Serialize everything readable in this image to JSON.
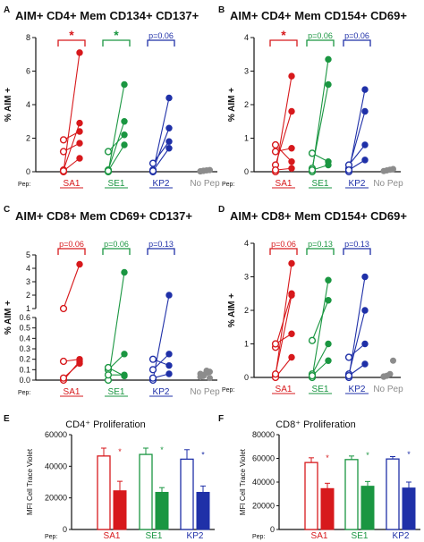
{
  "colors": {
    "SA1": "#d7191c",
    "SE1": "#1a9641",
    "KP2": "#1f30a8",
    "NoPep": "#8c8c8c"
  },
  "chart_data": [
    {
      "type": "scatter",
      "panel": "A",
      "title": "AIM+ CD4+ Mem CD134+ CD137+",
      "ylabel": "% AIM +",
      "ylim": [
        0,
        8
      ],
      "yticks": [
        "0",
        "2",
        "4",
        "6",
        "8"
      ],
      "pep_label": "Pep:",
      "categories": [
        "SA1",
        "SE1",
        "KP2",
        "No Pep"
      ],
      "significance": [
        "*",
        "*",
        "p=0.06",
        ""
      ],
      "pairs": [
        {
          "group": "SA1",
          "before": [
            0.0,
            0.1,
            1.2,
            1.9,
            0.05
          ],
          "after": [
            7.1,
            2.9,
            1.7,
            2.4,
            0.8
          ]
        },
        {
          "group": "SE1",
          "before": [
            0.0,
            0.1,
            1.2,
            0.05
          ],
          "after": [
            5.2,
            3.0,
            2.2,
            1.6
          ]
        },
        {
          "group": "KP2",
          "before": [
            0.0,
            0.1,
            0.5,
            0.05
          ],
          "after": [
            4.4,
            2.6,
            1.8,
            1.4
          ]
        }
      ],
      "nopep": [
        0.02,
        0.05,
        0.08,
        0.1,
        0.03,
        0.06
      ]
    },
    {
      "type": "scatter",
      "panel": "B",
      "title": "AIM+ CD4+ Mem CD154+ CD69+",
      "ylabel": "% AIM +",
      "ylim": [
        0,
        4
      ],
      "yticks": [
        "0",
        "1",
        "2",
        "3",
        "4"
      ],
      "pep_label": "Pep:",
      "categories": [
        "SA1",
        "SE1",
        "KP2",
        "No Pep"
      ],
      "significance": [
        "*",
        "p=0.06",
        "p=0.06",
        ""
      ],
      "pairs": [
        {
          "group": "SA1",
          "before": [
            0.0,
            0.2,
            0.6,
            0.8,
            0.05
          ],
          "after": [
            2.85,
            1.8,
            0.7,
            0.3,
            0.1
          ]
        },
        {
          "group": "SE1",
          "before": [
            0.0,
            0.1,
            0.55,
            0.05
          ],
          "after": [
            3.35,
            2.6,
            0.3,
            0.2
          ]
        },
        {
          "group": "KP2",
          "before": [
            0.0,
            0.1,
            0.2,
            0.05
          ],
          "after": [
            2.45,
            1.8,
            0.8,
            0.35
          ]
        }
      ],
      "nopep": [
        0.02,
        0.04,
        0.06,
        0.08
      ]
    },
    {
      "type": "scatter",
      "panel": "C",
      "title": "AIM+ CD8+ Mem CD69+ CD137+",
      "ylabel": "% AIM +",
      "ylim": [
        0,
        5
      ],
      "yticks": [
        "0.0",
        "0.1",
        "0.2",
        "0.3",
        "0.4",
        "0.5",
        "0.6",
        "1",
        "2",
        "3",
        "4",
        "5"
      ],
      "pep_label": "Pep:",
      "categories": [
        "SA1",
        "SE1",
        "KP2",
        "No Pep"
      ],
      "significance": [
        "p=0.06",
        "p=0.06",
        "p=0.13",
        ""
      ],
      "pairs": [
        {
          "group": "SA1",
          "before": [
            1.0,
            0.18,
            0.0,
            0.02
          ],
          "after": [
            4.3,
            0.2,
            0.18,
            0.16
          ]
        },
        {
          "group": "SE1",
          "before": [
            0.0,
            0.1,
            0.05,
            0.12
          ],
          "after": [
            3.7,
            0.25,
            0.05,
            0.04
          ]
        },
        {
          "group": "KP2",
          "before": [
            0.0,
            0.1,
            0.2,
            0.02
          ],
          "after": [
            2.0,
            0.25,
            0.14,
            0.06
          ]
        }
      ],
      "nopep": [
        0.03,
        0.05,
        0.07,
        0.08,
        0.06,
        0.04,
        0.09,
        0.02
      ]
    },
    {
      "type": "scatter",
      "panel": "D",
      "title": "AIM+ CD8+ Mem CD154+ CD69+",
      "ylabel": "% AIM +",
      "ylim": [
        0,
        4
      ],
      "yticks": [
        "0",
        "1",
        "2",
        "3",
        "4"
      ],
      "pep_label": "Pep:",
      "categories": [
        "SA1",
        "SE1",
        "KP2",
        "No Pep"
      ],
      "significance": [
        "p=0.06",
        "p=0.13",
        "p=0.13",
        ""
      ],
      "pairs": [
        {
          "group": "SA1",
          "before": [
            0.05,
            0.9,
            1.0,
            0.0,
            0.1
          ],
          "after": [
            3.4,
            2.5,
            1.3,
            0.6,
            2.45
          ]
        },
        {
          "group": "SE1",
          "before": [
            0.0,
            1.1,
            0.1,
            0.05
          ],
          "after": [
            2.9,
            2.3,
            1.0,
            0.5
          ]
        },
        {
          "group": "KP2",
          "before": [
            0.0,
            0.1,
            0.6,
            0.05
          ],
          "after": [
            3.0,
            2.0,
            1.0,
            0.4
          ]
        }
      ],
      "nopep": [
        0.02,
        0.05,
        0.1,
        0.5,
        0.03
      ]
    },
    {
      "type": "bar",
      "panel": "E",
      "title": "CD4⁺ Proliferation",
      "ylabel": "MFI Cell Trace Violet",
      "ylim": [
        0,
        60000
      ],
      "yticks": [
        "0",
        "20000",
        "40000",
        "60000"
      ],
      "pep_label": "Pep:",
      "categories": [
        "SA1",
        "SE1",
        "KP2"
      ],
      "series": [
        {
          "name": "",
          "fill": "open",
          "values": [
            46500,
            47500,
            44500
          ],
          "errors": [
            5000,
            4000,
            6000
          ]
        },
        {
          "name": "",
          "fill": "filled",
          "values": [
            24500,
            23500,
            23500
          ],
          "errors": [
            6000,
            3000,
            4000
          ]
        }
      ],
      "significance": [
        "*",
        "*",
        "*"
      ]
    },
    {
      "type": "bar",
      "panel": "F",
      "title": "CD8⁺ Proliferation",
      "ylabel": "MFI Cell Trace Violet",
      "ylim": [
        0,
        80000
      ],
      "yticks": [
        "0",
        "20000",
        "40000",
        "60000",
        "80000"
      ],
      "pep_label": "Pep:",
      "categories": [
        "SA1",
        "SE1",
        "KP2"
      ],
      "series": [
        {
          "name": "",
          "fill": "open",
          "values": [
            56500,
            59000,
            59500
          ],
          "errors": [
            4000,
            3000,
            2000
          ]
        },
        {
          "name": "",
          "fill": "filled",
          "values": [
            34500,
            36500,
            35000
          ],
          "errors": [
            4500,
            4000,
            5000
          ]
        }
      ],
      "significance": [
        "*",
        "*",
        "*"
      ]
    }
  ]
}
